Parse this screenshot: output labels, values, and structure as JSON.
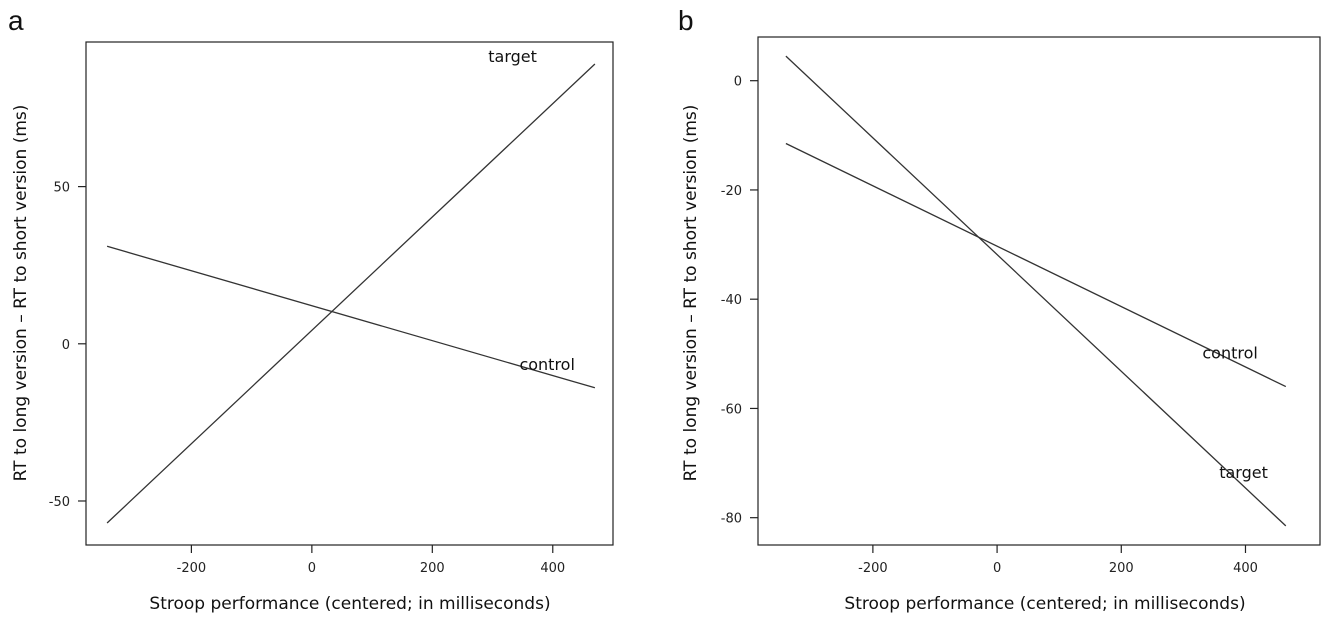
{
  "chart_data": [
    {
      "panel": "a",
      "type": "line",
      "title": "",
      "xlabel": "Stroop performance (centered; in milliseconds)",
      "ylabel": "RT to long version – RT to short version (ms)",
      "xlim": [
        -375,
        500
      ],
      "ylim": [
        -64,
        96
      ],
      "xticks": [
        -200,
        0,
        200,
        400
      ],
      "yticks": [
        -50,
        0,
        50
      ],
      "grid": false,
      "series": [
        {
          "name": "target",
          "x": [
            -340,
            470
          ],
          "y": [
            -57,
            89
          ]
        },
        {
          "name": "control",
          "x": [
            -340,
            470
          ],
          "y": [
            31,
            -14
          ]
        }
      ]
    },
    {
      "panel": "b",
      "type": "line",
      "title": "",
      "xlabel": "Stroop performance (centered; in milliseconds)",
      "ylabel": "RT to long version – RT to short version (ms)",
      "xlim": [
        -385,
        520
      ],
      "ylim": [
        -85,
        8
      ],
      "xticks": [
        -200,
        0,
        200,
        400
      ],
      "yticks": [
        -80,
        -60,
        -40,
        -20,
        0
      ],
      "grid": false,
      "series": [
        {
          "name": "control",
          "x": [
            -340,
            465
          ],
          "y": [
            -11.5,
            -56
          ]
        },
        {
          "name": "target",
          "x": [
            -340,
            465
          ],
          "y": [
            4.5,
            -81.5
          ]
        }
      ]
    }
  ]
}
